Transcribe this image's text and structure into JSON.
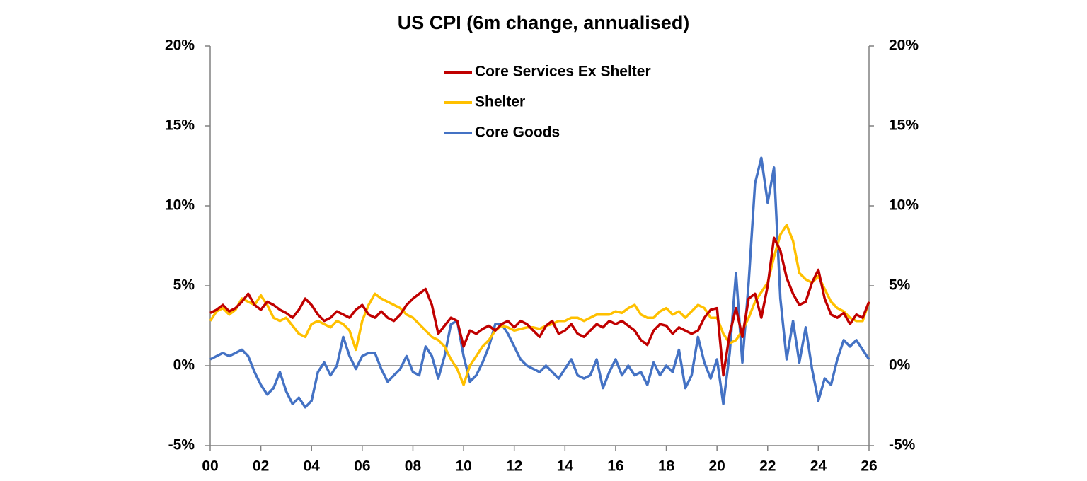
{
  "chart_data": {
    "type": "line",
    "title": "US CPI (6m change, annualised)",
    "x": [
      2000,
      2000.25,
      2000.5,
      2000.75,
      2001,
      2001.25,
      2001.5,
      2001.75,
      2002,
      2002.25,
      2002.5,
      2002.75,
      2003,
      2003.25,
      2003.5,
      2003.75,
      2004,
      2004.25,
      2004.5,
      2004.75,
      2005,
      2005.25,
      2005.5,
      2005.75,
      2006,
      2006.25,
      2006.5,
      2006.75,
      2007,
      2007.25,
      2007.5,
      2007.75,
      2008,
      2008.25,
      2008.5,
      2008.75,
      2009,
      2009.25,
      2009.5,
      2009.75,
      2010,
      2010.25,
      2010.5,
      2010.75,
      2011,
      2011.25,
      2011.5,
      2011.75,
      2012,
      2012.25,
      2012.5,
      2012.75,
      2013,
      2013.25,
      2013.5,
      2013.75,
      2014,
      2014.25,
      2014.5,
      2014.75,
      2015,
      2015.25,
      2015.5,
      2015.75,
      2016,
      2016.25,
      2016.5,
      2016.75,
      2017,
      2017.25,
      2017.5,
      2017.75,
      2018,
      2018.25,
      2018.5,
      2018.75,
      2019,
      2019.25,
      2019.5,
      2019.75,
      2020,
      2020.25,
      2020.5,
      2020.75,
      2021,
      2021.25,
      2021.5,
      2021.75,
      2022,
      2022.25,
      2022.5,
      2022.75,
      2023,
      2023.25,
      2023.5,
      2023.75,
      2024,
      2024.25,
      2024.5,
      2024.75,
      2025,
      2025.25,
      2025.5,
      2025.75,
      2026
    ],
    "series": [
      {
        "name": "Core Services Ex Shelter",
        "color": "#c00000",
        "values": [
          3.3,
          3.5,
          3.8,
          3.4,
          3.6,
          4.0,
          4.5,
          3.8,
          3.5,
          4.0,
          3.8,
          3.5,
          3.3,
          3.0,
          3.5,
          4.2,
          3.8,
          3.2,
          2.8,
          3.0,
          3.4,
          3.2,
          3.0,
          3.5,
          3.8,
          3.2,
          3.0,
          3.4,
          3.0,
          2.8,
          3.2,
          3.8,
          4.2,
          4.5,
          4.8,
          3.8,
          2.0,
          2.5,
          3.0,
          2.8,
          1.2,
          2.2,
          2.0,
          2.3,
          2.5,
          2.2,
          2.6,
          2.8,
          2.4,
          2.8,
          2.6,
          2.2,
          1.8,
          2.5,
          2.8,
          2.0,
          2.2,
          2.6,
          2.0,
          1.8,
          2.2,
          2.6,
          2.4,
          2.8,
          2.6,
          2.8,
          2.5,
          2.2,
          1.6,
          1.3,
          2.2,
          2.6,
          2.5,
          2.0,
          2.4,
          2.2,
          2.0,
          2.2,
          3.0,
          3.5,
          3.6,
          -0.6,
          2.0,
          3.6,
          1.8,
          4.2,
          4.5,
          3.0,
          5.0,
          8.0,
          7.2,
          5.5,
          4.5,
          3.8,
          4.0,
          5.2,
          6.0,
          4.2,
          3.2,
          3.0,
          3.3,
          2.6,
          3.2,
          3.0,
          4.0
        ]
      },
      {
        "name": "Shelter",
        "color": "#ffc000",
        "values": [
          2.8,
          3.4,
          3.6,
          3.2,
          3.5,
          4.2,
          4.0,
          3.8,
          4.4,
          3.8,
          3.0,
          2.8,
          3.0,
          2.5,
          2.0,
          1.8,
          2.6,
          2.8,
          2.6,
          2.4,
          2.8,
          2.6,
          2.2,
          1.0,
          2.8,
          3.8,
          4.5,
          4.2,
          4.0,
          3.8,
          3.6,
          3.2,
          3.0,
          2.6,
          2.2,
          1.8,
          1.6,
          1.2,
          0.4,
          -0.2,
          -1.2,
          0.0,
          0.6,
          1.2,
          1.6,
          2.2,
          2.5,
          2.4,
          2.2,
          2.3,
          2.4,
          2.4,
          2.3,
          2.5,
          2.6,
          2.8,
          2.8,
          3.0,
          3.0,
          2.8,
          3.0,
          3.2,
          3.2,
          3.2,
          3.4,
          3.3,
          3.6,
          3.8,
          3.2,
          3.0,
          3.0,
          3.4,
          3.6,
          3.2,
          3.4,
          3.0,
          3.4,
          3.8,
          3.6,
          3.0,
          3.0,
          2.0,
          1.4,
          1.6,
          2.2,
          3.0,
          4.0,
          4.6,
          5.2,
          6.8,
          8.2,
          8.8,
          7.8,
          5.8,
          5.4,
          5.2,
          5.6,
          4.8,
          4.0,
          3.6,
          3.4,
          3.0,
          2.8,
          2.8,
          4.0
        ]
      },
      {
        "name": "Core Goods",
        "color": "#4472c4",
        "values": [
          0.4,
          0.6,
          0.8,
          0.6,
          0.8,
          1.0,
          0.6,
          -0.4,
          -1.2,
          -1.8,
          -1.4,
          -0.4,
          -1.6,
          -2.4,
          -2.0,
          -2.6,
          -2.2,
          -0.4,
          0.2,
          -0.6,
          0.0,
          1.8,
          0.6,
          -0.2,
          0.6,
          0.8,
          0.8,
          -0.2,
          -1.0,
          -0.6,
          -0.2,
          0.6,
          -0.4,
          -0.6,
          1.2,
          0.6,
          -0.8,
          0.6,
          2.6,
          2.8,
          0.6,
          -1.0,
          -0.6,
          0.2,
          1.2,
          2.6,
          2.6,
          2.0,
          1.2,
          0.4,
          0.0,
          -0.2,
          -0.4,
          0.0,
          -0.4,
          -0.8,
          -0.2,
          0.4,
          -0.6,
          -0.8,
          -0.6,
          0.4,
          -1.4,
          -0.4,
          0.4,
          -0.6,
          0.0,
          -0.6,
          -0.4,
          -1.2,
          0.2,
          -0.6,
          0.0,
          -0.4,
          1.0,
          -1.4,
          -0.6,
          1.8,
          0.2,
          -0.8,
          0.4,
          -2.4,
          0.8,
          5.8,
          0.2,
          5.2,
          11.4,
          13.0,
          10.2,
          12.4,
          4.2,
          0.4,
          2.8,
          0.2,
          2.4,
          -0.2,
          -2.2,
          -0.8,
          -1.2,
          0.4,
          1.6,
          1.2,
          1.6,
          1.0,
          0.4
        ]
      }
    ],
    "xlim": [
      2000,
      2026
    ],
    "xticks": [
      {
        "value": 2000,
        "label": "00"
      },
      {
        "value": 2002,
        "label": "02"
      },
      {
        "value": 2004,
        "label": "04"
      },
      {
        "value": 2006,
        "label": "06"
      },
      {
        "value": 2008,
        "label": "08"
      },
      {
        "value": 2010,
        "label": "10"
      },
      {
        "value": 2012,
        "label": "12"
      },
      {
        "value": 2014,
        "label": "14"
      },
      {
        "value": 2016,
        "label": "16"
      },
      {
        "value": 2018,
        "label": "18"
      },
      {
        "value": 2020,
        "label": "20"
      },
      {
        "value": 2022,
        "label": "22"
      },
      {
        "value": 2024,
        "label": "24"
      },
      {
        "value": 2026,
        "label": "26"
      }
    ],
    "ylim": [
      -5,
      20
    ],
    "yticks": [
      {
        "value": -5,
        "label": "-5%"
      },
      {
        "value": 0,
        "label": "0%"
      },
      {
        "value": 5,
        "label": "5%"
      },
      {
        "value": 10,
        "label": "10%"
      },
      {
        "value": 15,
        "label": "15%"
      },
      {
        "value": 20,
        "label": "20%"
      }
    ],
    "y2lim": [
      -5,
      20
    ],
    "y2ticks": [
      {
        "value": -5,
        "label": "-5%"
      },
      {
        "value": 0,
        "label": "0%"
      },
      {
        "value": 5,
        "label": "5%"
      },
      {
        "value": 10,
        "label": "10%"
      },
      {
        "value": 15,
        "label": "15%"
      },
      {
        "value": 20,
        "label": "20%"
      }
    ]
  }
}
